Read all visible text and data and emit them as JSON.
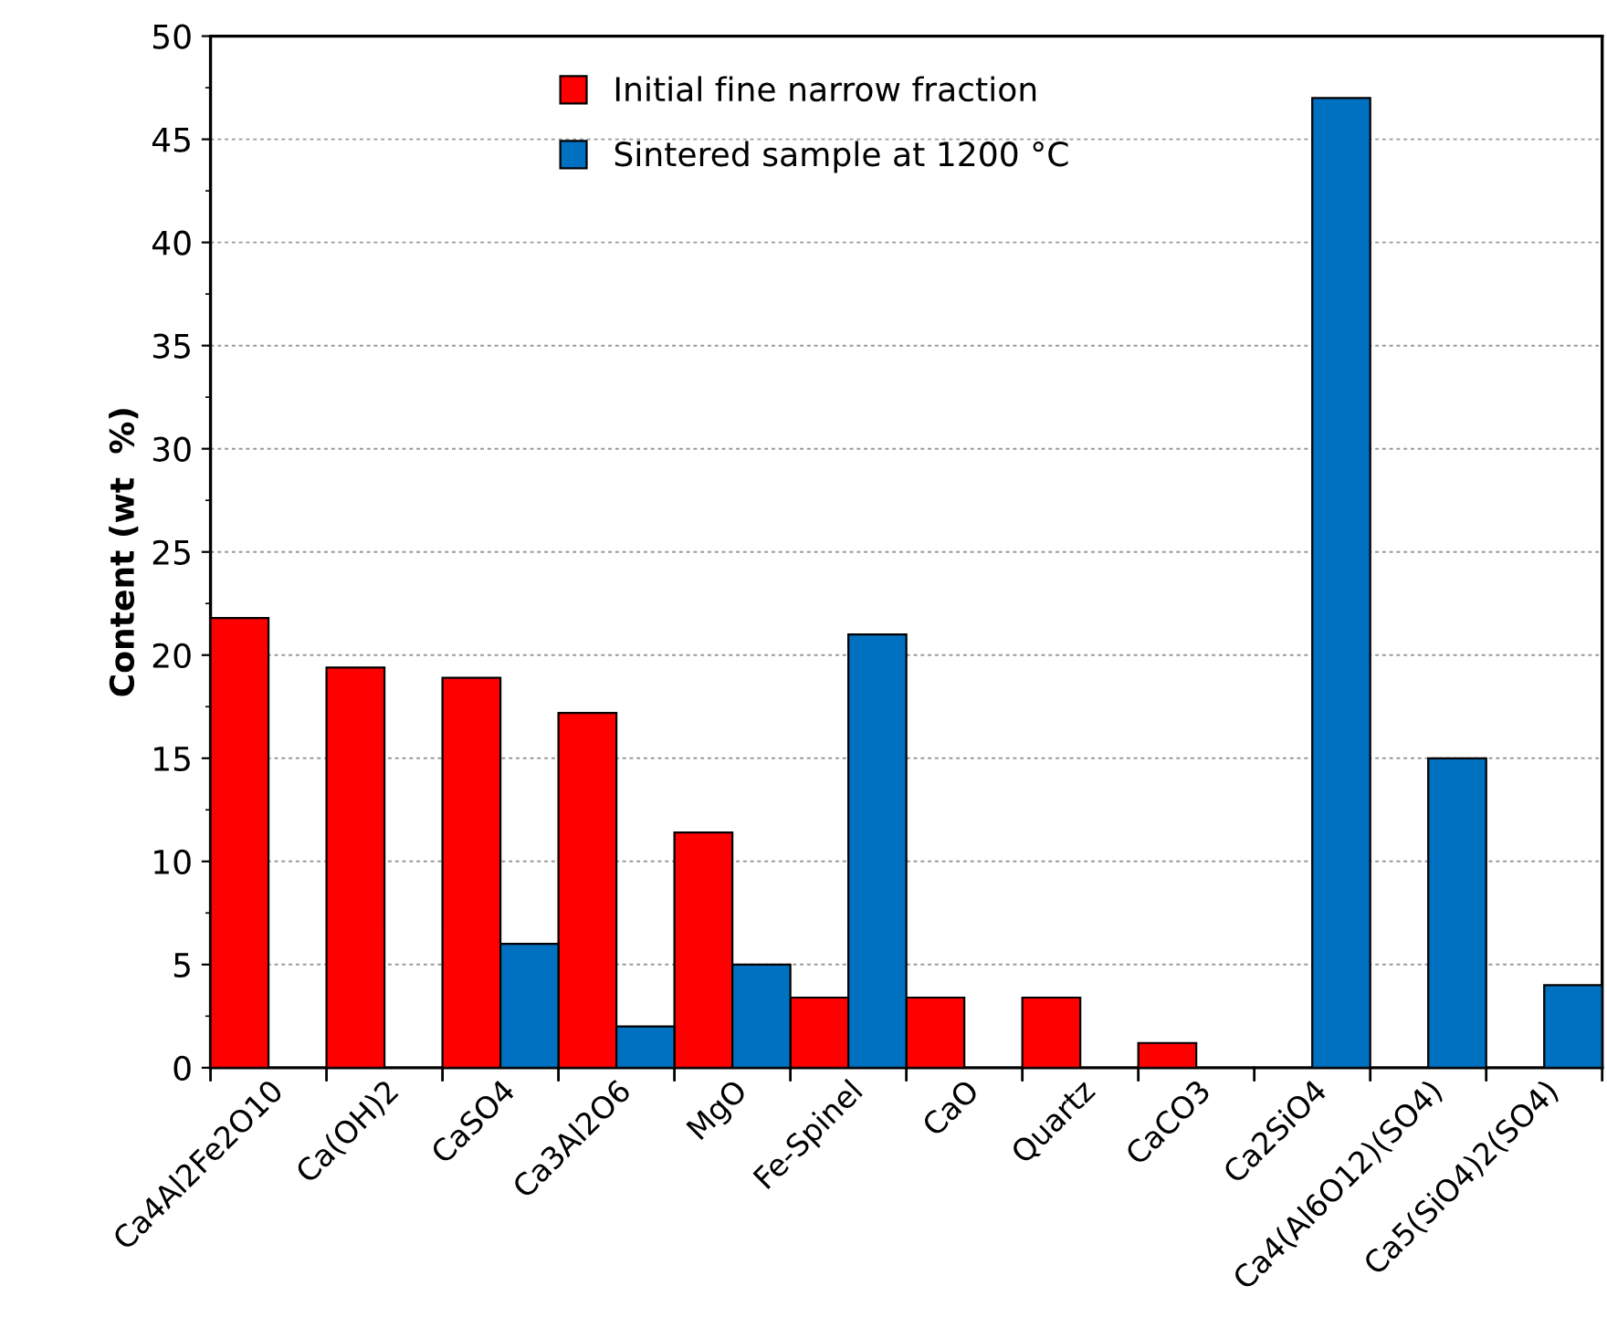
{
  "chart_data": {
    "type": "bar",
    "ylabel": "Content (wt  %)",
    "categories": [
      "Ca4Al2Fe2O10",
      "Ca(OH)2",
      "CaSO4",
      "Ca3Al2O6",
      "MgO",
      "Fe-Spinel",
      "CaO",
      "Quartz",
      "CaCO3",
      "Ca2SiO4",
      "Ca4(Al6O12)(SO4)",
      "Ca5(SiO4)2(SO4)"
    ],
    "series": [
      {
        "name": "Initial fine narrow fraction",
        "color": "#ff0000",
        "values": [
          21.8,
          19.4,
          18.9,
          17.2,
          11.4,
          3.4,
          3.4,
          3.4,
          1.2,
          null,
          null,
          null
        ]
      },
      {
        "name": "Sintered sample at 1200 °C",
        "color": "#0070c0",
        "values": [
          null,
          null,
          6,
          2,
          5,
          21,
          null,
          null,
          null,
          47,
          15,
          4
        ]
      }
    ],
    "ylim": [
      0,
      50
    ],
    "yticks": [
      0,
      5,
      10,
      15,
      20,
      25,
      30,
      35,
      40,
      45,
      50
    ],
    "grid": "y",
    "legend": "top"
  }
}
